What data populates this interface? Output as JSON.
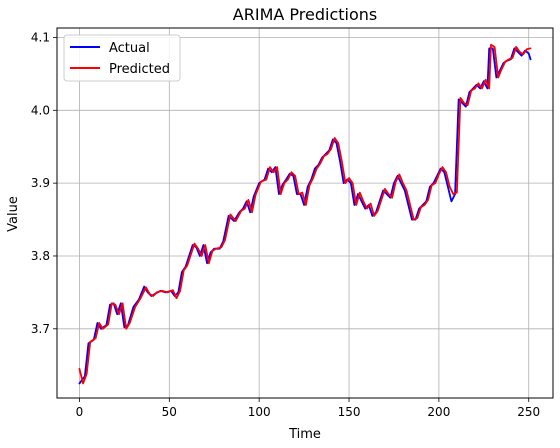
{
  "chart_data": {
    "type": "line",
    "title": "ARIMA Predictions",
    "xlabel": "Time",
    "ylabel": "Value",
    "xlim": [
      -12.5,
      263.5
    ],
    "ylim": [
      3.605,
      4.113
    ],
    "x_ticks": [
      0,
      50,
      100,
      150,
      200,
      250
    ],
    "x_tick_labels": [
      "0",
      "50",
      "100",
      "150",
      "200",
      "250"
    ],
    "y_ticks": [
      3.7,
      3.8,
      3.9,
      4.0,
      4.1
    ],
    "y_tick_labels": [
      "3.7",
      "3.8",
      "3.9",
      "4.0",
      "4.1"
    ],
    "grid": true,
    "legend_position": "top-left",
    "series": [
      {
        "name": "Actual",
        "color": "#0000ff",
        "points": [
          [
            0,
            3.625
          ],
          [
            3,
            3.635
          ],
          [
            5,
            3.68
          ],
          [
            8,
            3.685
          ],
          [
            10,
            3.708
          ],
          [
            12,
            3.7
          ],
          [
            15,
            3.705
          ],
          [
            17,
            3.733
          ],
          [
            19,
            3.735
          ],
          [
            21,
            3.72
          ],
          [
            23,
            3.735
          ],
          [
            25,
            3.702
          ],
          [
            27,
            3.705
          ],
          [
            30,
            3.73
          ],
          [
            33,
            3.74
          ],
          [
            36,
            3.758
          ],
          [
            38,
            3.75
          ],
          [
            40,
            3.745
          ],
          [
            42,
            3.748
          ],
          [
            45,
            3.752
          ],
          [
            48,
            3.75
          ],
          [
            51,
            3.752
          ],
          [
            53,
            3.745
          ],
          [
            55,
            3.75
          ],
          [
            57,
            3.778
          ],
          [
            59,
            3.785
          ],
          [
            61,
            3.8
          ],
          [
            63,
            3.815
          ],
          [
            65,
            3.812
          ],
          [
            67,
            3.8
          ],
          [
            69,
            3.815
          ],
          [
            71,
            3.79
          ],
          [
            73,
            3.805
          ],
          [
            75,
            3.81
          ],
          [
            78,
            3.81
          ],
          [
            80,
            3.82
          ],
          [
            83,
            3.855
          ],
          [
            86,
            3.848
          ],
          [
            89,
            3.86
          ],
          [
            91,
            3.865
          ],
          [
            93,
            3.875
          ],
          [
            95,
            3.86
          ],
          [
            97,
            3.882
          ],
          [
            100,
            3.9
          ],
          [
            103,
            3.905
          ],
          [
            105,
            3.92
          ],
          [
            107,
            3.915
          ],
          [
            109,
            3.922
          ],
          [
            111,
            3.885
          ],
          [
            113,
            3.898
          ],
          [
            115,
            3.905
          ],
          [
            117,
            3.913
          ],
          [
            119,
            3.91
          ],
          [
            121,
            3.885
          ],
          [
            123,
            3.885
          ],
          [
            125,
            3.87
          ],
          [
            127,
            3.895
          ],
          [
            129,
            3.905
          ],
          [
            131,
            3.92
          ],
          [
            133,
            3.925
          ],
          [
            135,
            3.935
          ],
          [
            137,
            3.94
          ],
          [
            139,
            3.945
          ],
          [
            141,
            3.96
          ],
          [
            143,
            3.955
          ],
          [
            145,
            3.93
          ],
          [
            147,
            3.9
          ],
          [
            149,
            3.905
          ],
          [
            151,
            3.9
          ],
          [
            153,
            3.87
          ],
          [
            155,
            3.885
          ],
          [
            157,
            3.875
          ],
          [
            159,
            3.865
          ],
          [
            161,
            3.87
          ],
          [
            163,
            3.855
          ],
          [
            165,
            3.86
          ],
          [
            167,
            3.875
          ],
          [
            169,
            3.89
          ],
          [
            171,
            3.885
          ],
          [
            173,
            3.88
          ],
          [
            175,
            3.9
          ],
          [
            177,
            3.91
          ],
          [
            179,
            3.9
          ],
          [
            181,
            3.89
          ],
          [
            183,
            3.87
          ],
          [
            185,
            3.85
          ],
          [
            187,
            3.85
          ],
          [
            189,
            3.865
          ],
          [
            191,
            3.87
          ],
          [
            193,
            3.875
          ],
          [
            195,
            3.895
          ],
          [
            197,
            3.9
          ],
          [
            199,
            3.91
          ],
          [
            201,
            3.92
          ],
          [
            203,
            3.915
          ],
          [
            205,
            3.895
          ],
          [
            207,
            3.875
          ],
          [
            209,
            3.885
          ],
          [
            211,
            4.015
          ],
          [
            213,
            4.01
          ],
          [
            215,
            4.005
          ],
          [
            217,
            4.025
          ],
          [
            219,
            4.03
          ],
          [
            221,
            4.035
          ],
          [
            223,
            4.03
          ],
          [
            225,
            4.04
          ],
          [
            227,
            4.03
          ],
          [
            228,
            4.085
          ],
          [
            230,
            4.085
          ],
          [
            232,
            4.045
          ],
          [
            234,
            4.055
          ],
          [
            236,
            4.065
          ],
          [
            238,
            4.068
          ],
          [
            240,
            4.07
          ],
          [
            242,
            4.085
          ],
          [
            244,
            4.08
          ],
          [
            246,
            4.075
          ],
          [
            248,
            4.082
          ],
          [
            250,
            4.078
          ],
          [
            251,
            4.07
          ]
        ]
      },
      {
        "name": "Predicted",
        "color": "#ff0000",
        "points": [
          [
            0,
            3.645
          ],
          [
            2,
            3.625
          ],
          [
            4,
            3.638
          ],
          [
            6,
            3.682
          ],
          [
            9,
            3.687
          ],
          [
            11,
            3.708
          ],
          [
            13,
            3.7
          ],
          [
            16,
            3.706
          ],
          [
            18,
            3.735
          ],
          [
            20,
            3.733
          ],
          [
            22,
            3.72
          ],
          [
            24,
            3.735
          ],
          [
            26,
            3.7
          ],
          [
            28,
            3.708
          ],
          [
            31,
            3.73
          ],
          [
            34,
            3.742
          ],
          [
            37,
            3.757
          ],
          [
            39,
            3.748
          ],
          [
            41,
            3.745
          ],
          [
            43,
            3.75
          ],
          [
            46,
            3.752
          ],
          [
            49,
            3.75
          ],
          [
            52,
            3.753
          ],
          [
            54,
            3.742
          ],
          [
            56,
            3.752
          ],
          [
            58,
            3.78
          ],
          [
            60,
            3.787
          ],
          [
            62,
            3.802
          ],
          [
            64,
            3.817
          ],
          [
            66,
            3.81
          ],
          [
            68,
            3.8
          ],
          [
            70,
            3.815
          ],
          [
            72,
            3.79
          ],
          [
            74,
            3.807
          ],
          [
            76,
            3.81
          ],
          [
            79,
            3.812
          ],
          [
            81,
            3.822
          ],
          [
            84,
            3.857
          ],
          [
            87,
            3.848
          ],
          [
            90,
            3.862
          ],
          [
            92,
            3.865
          ],
          [
            94,
            3.877
          ],
          [
            96,
            3.86
          ],
          [
            98,
            3.884
          ],
          [
            101,
            3.902
          ],
          [
            104,
            3.905
          ],
          [
            106,
            3.922
          ],
          [
            108,
            3.915
          ],
          [
            110,
            3.922
          ],
          [
            112,
            3.885
          ],
          [
            114,
            3.9
          ],
          [
            116,
            3.905
          ],
          [
            118,
            3.915
          ],
          [
            120,
            3.91
          ],
          [
            122,
            3.885
          ],
          [
            124,
            3.887
          ],
          [
            126,
            3.87
          ],
          [
            128,
            3.897
          ],
          [
            130,
            3.907
          ],
          [
            132,
            3.92
          ],
          [
            134,
            3.927
          ],
          [
            136,
            3.937
          ],
          [
            138,
            3.94
          ],
          [
            140,
            3.947
          ],
          [
            142,
            3.962
          ],
          [
            144,
            3.955
          ],
          [
            146,
            3.93
          ],
          [
            148,
            3.9
          ],
          [
            150,
            3.907
          ],
          [
            152,
            3.9
          ],
          [
            154,
            3.87
          ],
          [
            156,
            3.887
          ],
          [
            158,
            3.875
          ],
          [
            160,
            3.865
          ],
          [
            162,
            3.872
          ],
          [
            164,
            3.855
          ],
          [
            166,
            3.862
          ],
          [
            168,
            3.877
          ],
          [
            170,
            3.892
          ],
          [
            172,
            3.885
          ],
          [
            174,
            3.88
          ],
          [
            176,
            3.902
          ],
          [
            178,
            3.912
          ],
          [
            180,
            3.9
          ],
          [
            182,
            3.89
          ],
          [
            184,
            3.87
          ],
          [
            186,
            3.85
          ],
          [
            188,
            3.852
          ],
          [
            190,
            3.867
          ],
          [
            192,
            3.87
          ],
          [
            194,
            3.877
          ],
          [
            196,
            3.897
          ],
          [
            198,
            3.9
          ],
          [
            200,
            3.912
          ],
          [
            202,
            3.922
          ],
          [
            204,
            3.915
          ],
          [
            206,
            3.895
          ],
          [
            208,
            3.885
          ],
          [
            210,
            3.887
          ],
          [
            212,
            4.017
          ],
          [
            214,
            4.01
          ],
          [
            216,
            4.007
          ],
          [
            218,
            4.027
          ],
          [
            220,
            4.03
          ],
          [
            222,
            4.037
          ],
          [
            224,
            4.03
          ],
          [
            226,
            4.042
          ],
          [
            228,
            4.03
          ],
          [
            229,
            4.09
          ],
          [
            231,
            4.087
          ],
          [
            233,
            4.045
          ],
          [
            235,
            4.057
          ],
          [
            237,
            4.067
          ],
          [
            239,
            4.07
          ],
          [
            241,
            4.072
          ],
          [
            243,
            4.087
          ],
          [
            245,
            4.08
          ],
          [
            247,
            4.077
          ],
          [
            249,
            4.084
          ],
          [
            251,
            4.085
          ]
        ]
      }
    ]
  }
}
